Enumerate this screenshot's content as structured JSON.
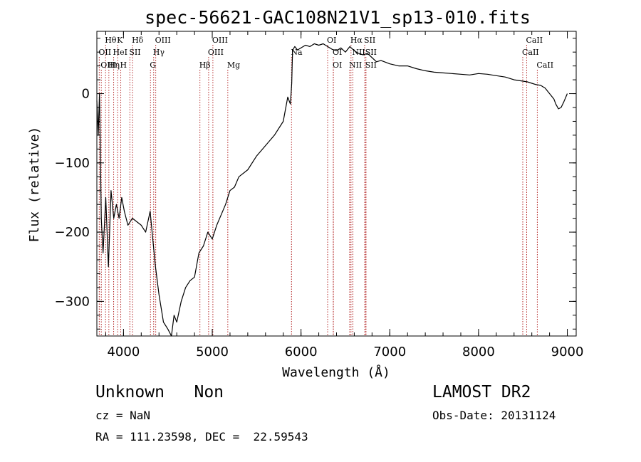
{
  "chart_data": {
    "type": "line",
    "title": "spec-56621-GAC108N21V1_sp13-010.fits",
    "xlabel": "Wavelength (Å)",
    "ylabel": "Flux (relative)",
    "xlim": [
      3700,
      9100
    ],
    "ylim": [
      -350,
      90
    ],
    "xticks": [
      4000,
      5000,
      6000,
      7000,
      8000,
      9000
    ],
    "yticks": [
      -300,
      -200,
      -100,
      0
    ],
    "grid": false,
    "spectrum": {
      "x": [
        3700,
        3715,
        3730,
        3750,
        3770,
        3800,
        3830,
        3860,
        3890,
        3920,
        3950,
        3980,
        4010,
        4050,
        4100,
        4150,
        4200,
        4250,
        4300,
        4330,
        4360,
        4400,
        4450,
        4500,
        4540,
        4570,
        4600,
        4650,
        4700,
        4750,
        4800,
        4850,
        4900,
        4950,
        5000,
        5050,
        5100,
        5150,
        5200,
        5250,
        5300,
        5400,
        5500,
        5600,
        5700,
        5800,
        5850,
        5880,
        5895,
        5900,
        5905,
        5915,
        5930,
        5960,
        6000,
        6050,
        6100,
        6150,
        6200,
        6250,
        6300,
        6350,
        6400,
        6450,
        6500,
        6550,
        6600,
        6650,
        6700,
        6750,
        6800,
        6850,
        6900,
        7000,
        7100,
        7200,
        7300,
        7400,
        7500,
        7600,
        7700,
        7800,
        7900,
        8000,
        8100,
        8200,
        8300,
        8400,
        8500,
        8550,
        8600,
        8650,
        8700,
        8750,
        8800,
        8850,
        8870,
        8900,
        8930,
        8960,
        9000
      ],
      "y": [
        -10,
        -60,
        0,
        -180,
        -230,
        -150,
        -250,
        -140,
        -180,
        -160,
        -180,
        -150,
        -170,
        -190,
        -180,
        -185,
        -190,
        -200,
        -170,
        -210,
        -250,
        -290,
        -330,
        -340,
        -350,
        -320,
        -330,
        -300,
        -280,
        -270,
        -265,
        -230,
        -220,
        -200,
        -210,
        -190,
        -175,
        -160,
        -140,
        -135,
        -120,
        -110,
        -90,
        -75,
        -60,
        -40,
        -5,
        -15,
        15,
        40,
        62,
        65,
        68,
        63,
        66,
        70,
        68,
        72,
        70,
        72,
        68,
        64,
        62,
        66,
        60,
        68,
        62,
        58,
        56,
        58,
        52,
        46,
        48,
        43,
        40,
        40,
        36,
        33,
        31,
        30,
        29,
        28,
        27,
        29,
        28,
        26,
        24,
        20,
        18,
        17,
        15,
        13,
        12,
        8,
        0,
        -8,
        -15,
        -22,
        -20,
        -12,
        0
      ]
    },
    "emission_lines": [
      {
        "label": "Hθ",
        "x": 3798,
        "row": 1
      },
      {
        "label": "K",
        "x": 3934,
        "row": 1
      },
      {
        "label": "Hδ",
        "x": 4102,
        "row": 1
      },
      {
        "label": "OIII",
        "x": 4363,
        "row": 1
      },
      {
        "label": "OIII",
        "x": 5007,
        "row": 1
      },
      {
        "label": "OI",
        "x": 6300,
        "row": 1
      },
      {
        "label": "Hα",
        "x": 6563,
        "row": 1
      },
      {
        "label": "SII",
        "x": 6717,
        "row": 1
      },
      {
        "label": "CaII",
        "x": 8542,
        "row": 1
      },
      {
        "label": "OII",
        "x": 3727,
        "row": 2
      },
      {
        "label": "HeI",
        "x": 3889,
        "row": 2
      },
      {
        "label": "SII",
        "x": 4072,
        "row": 2
      },
      {
        "label": "Hγ",
        "x": 4340,
        "row": 2
      },
      {
        "label": "OIII",
        "x": 4959,
        "row": 2
      },
      {
        "label": "Na",
        "x": 5893,
        "row": 2
      },
      {
        "label": "OI",
        "x": 6364,
        "row": 2
      },
      {
        "label": "NII",
        "x": 6584,
        "row": 2
      },
      {
        "label": "SII",
        "x": 6731,
        "row": 2
      },
      {
        "label": "CaII",
        "x": 8498,
        "row": 2
      },
      {
        "label": "OIII",
        "x": 3750,
        "row": 3
      },
      {
        "label": "Hη",
        "x": 3835,
        "row": 3
      },
      {
        "label": "H",
        "x": 3969,
        "row": 3
      },
      {
        "label": "G",
        "x": 4304,
        "row": 3
      },
      {
        "label": "Hβ",
        "x": 4861,
        "row": 3
      },
      {
        "label": "Mg",
        "x": 5175,
        "row": 3
      },
      {
        "label": "OI",
        "x": 6364,
        "row": 3
      },
      {
        "label": "NII",
        "x": 6548,
        "row": 3
      },
      {
        "label": "SII",
        "x": 6731,
        "row": 3
      },
      {
        "label": "CaII",
        "x": 8662,
        "row": 3
      }
    ],
    "colors": {
      "spectrum": "#000000",
      "lines": "#b22222",
      "axes": "#000000"
    }
  },
  "info": {
    "class_label": "Unknown   Non",
    "survey": "LAMOST DR2",
    "cz": "cz = NaN",
    "obs_date": "Obs-Date: 20131124",
    "coords": "RA = 111.23598, DEC =  22.59543"
  }
}
